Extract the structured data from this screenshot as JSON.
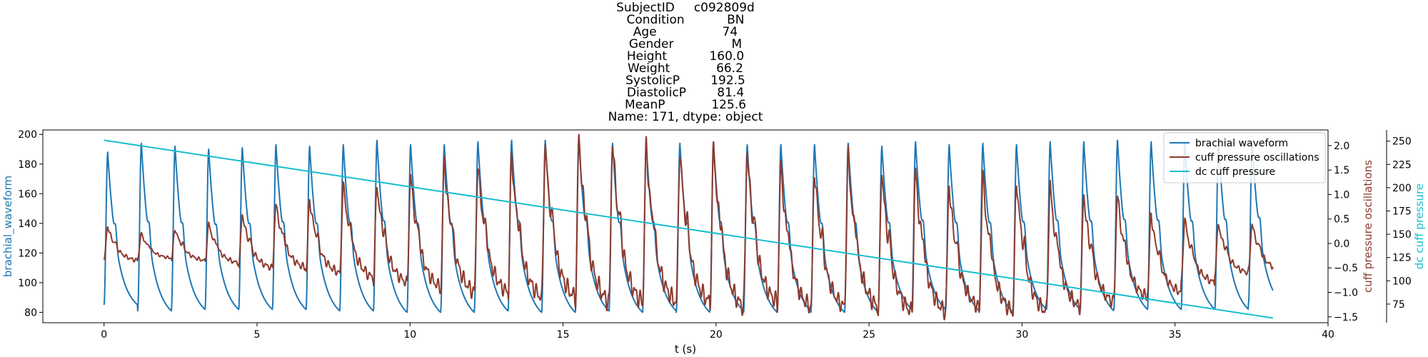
{
  "chart_data": {
    "type": "line",
    "title_lines": [
      "SubjectID     c092809d",
      "Condition           BN",
      "Age                 74",
      "Gender               M",
      "Height           160.0",
      "Weight            66.2",
      "SystolicP        192.5",
      "DiastolicP        81.4",
      "MeanP            125.6",
      "Name: 171, dtype: object"
    ],
    "xlabel": "t (s)",
    "xlim": [
      -2.0,
      40.0
    ],
    "xticks": [
      0,
      5,
      10,
      15,
      20,
      25,
      30,
      35,
      40
    ],
    "grid": false,
    "legend_position": "top-right",
    "axes": {
      "left": {
        "label": "brachial_waveform",
        "ylim": [
          73,
          203
        ],
        "ticks": [
          80,
          100,
          120,
          140,
          160,
          180,
          200
        ],
        "color": "#1f77b4"
      },
      "right1": {
        "label": "cuff pressure oscillations",
        "ylim": [
          -1.62,
          2.32
        ],
        "ticks": [
          -1.5,
          -1.0,
          -0.5,
          0.0,
          0.5,
          1.0,
          1.5,
          2.0
        ],
        "tick_labels": [
          "−1.5",
          "−1.0",
          "−0.5",
          "0.0",
          "0.5",
          "1.0",
          "1.5",
          "2.0"
        ],
        "color": "#8c3b2e"
      },
      "right2": {
        "label": "dc cuff pressure",
        "ylim": [
          55,
          262
        ],
        "ticks": [
          75,
          100,
          125,
          150,
          175,
          200,
          225,
          250
        ],
        "color": "#17becf"
      }
    },
    "series": [
      {
        "name": "brachial waveform",
        "axis": "left",
        "color": "#1f77b4",
        "beat_times": [
          0.0,
          1.1,
          2.2,
          3.3,
          4.4,
          5.5,
          6.6,
          7.7,
          8.8,
          9.9,
          11.0,
          12.1,
          13.2,
          14.3,
          15.4,
          16.5,
          17.6,
          18.7,
          19.8,
          20.9,
          22.0,
          23.1,
          24.2,
          25.3,
          26.4,
          27.5,
          28.6,
          29.7,
          30.8,
          31.9,
          33.0,
          34.1,
          35.2,
          36.3,
          37.4
        ],
        "peak_values": [
          188,
          194,
          192,
          190,
          191,
          193,
          192,
          193,
          196,
          193,
          193,
          195,
          196,
          196,
          196,
          194,
          194,
          194,
          194,
          193,
          193,
          193,
          194,
          192,
          195,
          193,
          194,
          193,
          195,
          195,
          196,
          195,
          194,
          196,
          195
        ],
        "trough_values": [
          85,
          81,
          82,
          82,
          82,
          82,
          81,
          81,
          80,
          80,
          80,
          81,
          80,
          80,
          81,
          80,
          81,
          80,
          81,
          80,
          81,
          80,
          80,
          82,
          82,
          81,
          80,
          82,
          82,
          81,
          82,
          82,
          82,
          82,
          86
        ],
        "end_time": 38.2
      },
      {
        "name": "cuff pressure oscillations",
        "axis": "right1",
        "color": "#8c3b2e",
        "beat_times": [
          0.0,
          1.1,
          2.2,
          3.3,
          4.4,
          5.5,
          6.6,
          7.7,
          8.8,
          9.9,
          11.0,
          12.1,
          13.2,
          14.3,
          15.4,
          16.5,
          17.6,
          18.7,
          19.8,
          20.9,
          22.0,
          23.1,
          24.2,
          25.3,
          26.4,
          27.5,
          28.6,
          29.7,
          30.8,
          31.9,
          33.0,
          34.1,
          35.2,
          36.3,
          37.4
        ],
        "peak_values": [
          0.35,
          0.2,
          0.3,
          0.4,
          0.6,
          0.8,
          0.9,
          1.2,
          1.2,
          1.4,
          1.7,
          1.6,
          1.8,
          2.0,
          2.2,
          2.1,
          2.0,
          1.9,
          2.0,
          1.9,
          1.6,
          1.5,
          1.8,
          1.5,
          1.5,
          1.2,
          1.4,
          1.3,
          1.2,
          1.0,
          1.0,
          0.6,
          0.5,
          0.4,
          0.4
        ],
        "trough_values": [
          -0.35,
          -0.3,
          -0.35,
          -0.4,
          -0.5,
          -0.5,
          -0.6,
          -0.7,
          -0.8,
          -0.9,
          -1.0,
          -1.0,
          -1.1,
          -1.1,
          -1.2,
          -1.2,
          -1.2,
          -1.2,
          -1.3,
          -1.2,
          -1.3,
          -1.3,
          -1.3,
          -1.4,
          -1.4,
          -1.3,
          -1.4,
          -1.4,
          -1.3,
          -1.2,
          -1.1,
          -1.0,
          -0.8,
          -0.6,
          -0.55
        ],
        "end_time": 38.2
      },
      {
        "name": "dc cuff pressure",
        "axis": "right2",
        "color": "#17becf",
        "x": [
          0.0,
          38.2
        ],
        "values": [
          251,
          60
        ]
      }
    ]
  }
}
